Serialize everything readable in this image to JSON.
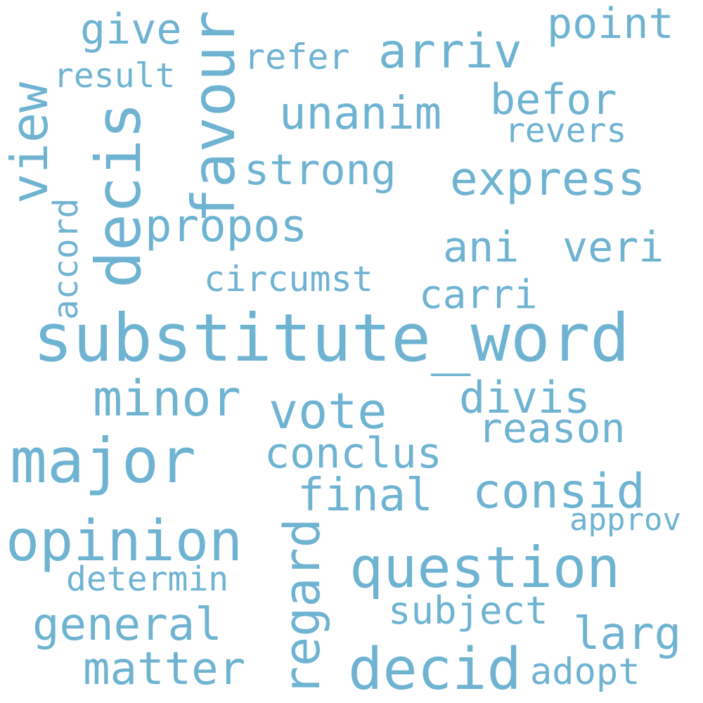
{
  "cloud": {
    "text_color": "#6fb3d2",
    "background_color": "#ffffff",
    "words": {
      "substitute_word": "substitute_word",
      "major": "major",
      "opinion": "opinion",
      "question": "question",
      "decid": "decid",
      "decis": "decis",
      "favour": "favour",
      "express": "express",
      "consid": "consid",
      "minor": "minor",
      "vote": "vote",
      "general": "general",
      "matter": "matter",
      "arriv": "arriv",
      "unanim": "unanim",
      "propos": "propos",
      "final": "final",
      "conclus": "conclus",
      "strong": "strong",
      "befor": "befor",
      "point": "point",
      "give": "give",
      "view": "view",
      "divis": "divis",
      "reason": "reason",
      "ani": "ani",
      "veri": "veri",
      "carri": "carri",
      "regard": "regard",
      "larg": "larg",
      "subject": "subject",
      "circumst": "circumst",
      "refer": "refer",
      "result": "result",
      "revers": "revers",
      "accord": "accord",
      "determin": "determin",
      "approv": "approv",
      "adopt": "adopt"
    }
  }
}
